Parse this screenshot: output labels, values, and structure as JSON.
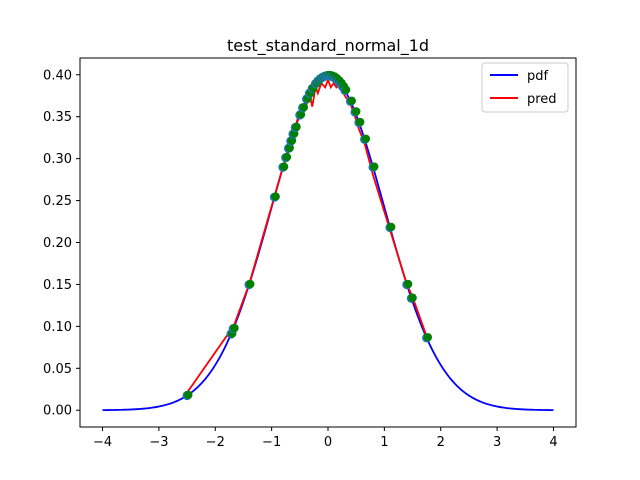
{
  "chart_data": {
    "type": "line",
    "title": "test_standard_normal_1d",
    "xlabel": "",
    "ylabel": "",
    "xlim": [
      -4.4,
      4.4
    ],
    "ylim": [
      -0.02,
      0.42
    ],
    "x_ticks": [
      -4,
      -3,
      -2,
      -1,
      0,
      1,
      2,
      3,
      4
    ],
    "x_tick_labels": [
      "−4",
      "−3",
      "−2",
      "−1",
      "0",
      "1",
      "2",
      "3",
      "4"
    ],
    "y_ticks": [
      0.0,
      0.05,
      0.1,
      0.15,
      0.2,
      0.25,
      0.3,
      0.35,
      0.4
    ],
    "y_tick_labels": [
      "0.00",
      "0.05",
      "0.10",
      "0.15",
      "0.20",
      "0.25",
      "0.30",
      "0.35",
      "0.40"
    ],
    "grid": false,
    "legend_position": "top-right",
    "series": [
      {
        "name": "pdf",
        "color": "#0000ff",
        "style": "line",
        "curve": "standard-normal-pdf",
        "x_range": [
          -4,
          4
        ]
      },
      {
        "name": "pred",
        "color": "#ff0000",
        "style": "line",
        "points": [
          [
            -2.5,
            0.021
          ],
          [
            -1.72,
            0.096
          ],
          [
            -1.68,
            0.099
          ],
          [
            -1.4,
            0.15
          ],
          [
            -0.95,
            0.255
          ],
          [
            -0.8,
            0.29
          ],
          [
            -0.72,
            0.305
          ],
          [
            -0.68,
            0.315
          ],
          [
            -0.64,
            0.325
          ],
          [
            -0.6,
            0.333
          ],
          [
            -0.52,
            0.352
          ],
          [
            -0.45,
            0.362
          ],
          [
            -0.38,
            0.365
          ],
          [
            -0.32,
            0.375
          ],
          [
            -0.28,
            0.362
          ],
          [
            -0.22,
            0.385
          ],
          [
            -0.18,
            0.378
          ],
          [
            -0.12,
            0.39
          ],
          [
            -0.05,
            0.385
          ],
          [
            0.0,
            0.394
          ],
          [
            0.05,
            0.385
          ],
          [
            0.1,
            0.39
          ],
          [
            0.15,
            0.385
          ],
          [
            0.2,
            0.388
          ],
          [
            0.3,
            0.375
          ],
          [
            0.4,
            0.365
          ],
          [
            0.48,
            0.35
          ],
          [
            0.55,
            0.335
          ],
          [
            0.65,
            0.318
          ],
          [
            0.8,
            0.28
          ],
          [
            1.1,
            0.215
          ],
          [
            1.4,
            0.15
          ],
          [
            1.5,
            0.135
          ],
          [
            1.75,
            0.088
          ]
        ]
      },
      {
        "name": "",
        "color": "#008000",
        "style": "scatter",
        "points": [
          -2.5,
          -1.72,
          -1.68,
          -1.4,
          -0.95,
          -0.8,
          -0.75,
          -0.7,
          -0.66,
          -0.62,
          -0.58,
          -0.5,
          -0.45,
          -0.38,
          -0.33,
          -0.28,
          -0.22,
          -0.18,
          -0.14,
          -0.1,
          -0.06,
          -0.02,
          0.02,
          0.06,
          0.1,
          0.14,
          0.18,
          0.22,
          0.26,
          0.3,
          0.4,
          0.48,
          0.55,
          0.65,
          0.8,
          1.1,
          1.4,
          1.48,
          1.75
        ]
      }
    ]
  }
}
